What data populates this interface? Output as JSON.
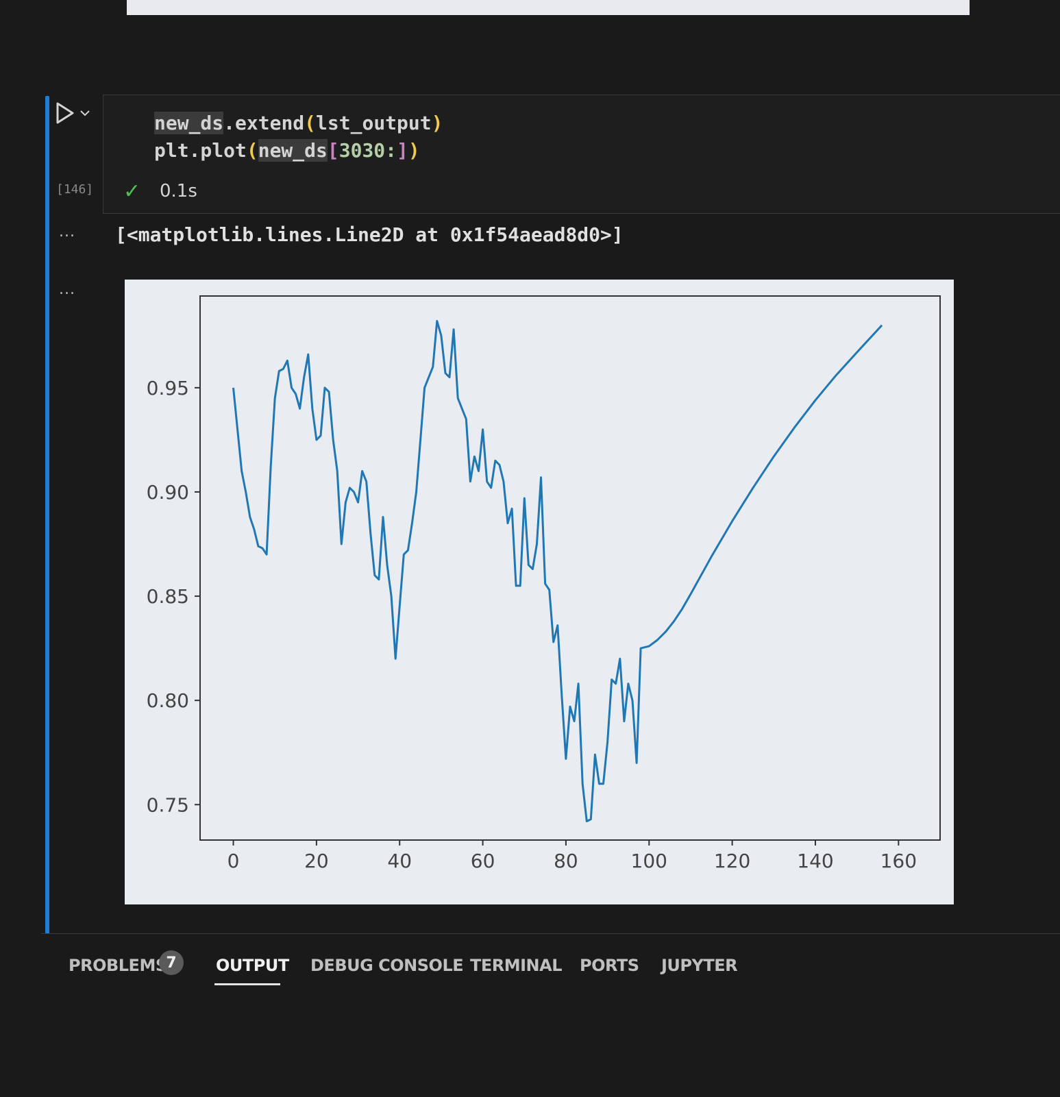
{
  "cell": {
    "code_lines": [
      {
        "parts": [
          "new_ds",
          ".extend",
          "(",
          "lst_output",
          ")"
        ]
      },
      {
        "parts": [
          "plt.plot",
          "(",
          "new_ds",
          "[",
          "3030:",
          "]",
          ")"
        ]
      }
    ],
    "execution_count": "[146]",
    "status": "✓",
    "exec_time": "0.1s"
  },
  "output": {
    "more_label": "...",
    "repr_text": "[<matplotlib.lines.Line2D at 0x1f54aead8d0>]"
  },
  "panel": {
    "tabs": [
      {
        "label": "PROBLEMS",
        "badge": "7"
      },
      {
        "label": "OUTPUT",
        "active": true
      },
      {
        "label": "DEBUG CONSOLE"
      },
      {
        "label": "TERMINAL"
      },
      {
        "label": "PORTS"
      },
      {
        "label": "JUPYTER"
      }
    ]
  },
  "colors": {
    "line": "#1f77b4",
    "accent": "#1f7fd6"
  },
  "chart_data": {
    "type": "line",
    "x_ticks": [
      0,
      20,
      40,
      60,
      80,
      100,
      120,
      140,
      160
    ],
    "y_ticks": [
      0.75,
      0.8,
      0.85,
      0.9,
      0.95
    ],
    "x_tick_labels": [
      "0",
      "20",
      "40",
      "60",
      "80",
      "100",
      "120",
      "140",
      "160"
    ],
    "y_tick_labels": [
      "0.75",
      "0.80",
      "0.85",
      "0.90",
      "0.95"
    ],
    "xlim": [
      -8,
      170
    ],
    "ylim": [
      0.733,
      0.994
    ],
    "grid": false,
    "series": [
      {
        "points": [
          [
            0,
            0.95
          ],
          [
            1,
            0.93
          ],
          [
            2,
            0.91
          ],
          [
            3,
            0.9
          ],
          [
            4,
            0.888
          ],
          [
            5,
            0.882
          ],
          [
            6,
            0.874
          ],
          [
            7,
            0.873
          ],
          [
            8,
            0.87
          ],
          [
            9,
            0.912
          ],
          [
            10,
            0.945
          ],
          [
            11,
            0.958
          ],
          [
            12,
            0.959
          ],
          [
            13,
            0.963
          ],
          [
            14,
            0.95
          ],
          [
            15,
            0.947
          ],
          [
            16,
            0.94
          ],
          [
            17,
            0.955
          ],
          [
            18,
            0.966
          ],
          [
            19,
            0.94
          ],
          [
            20,
            0.925
          ],
          [
            21,
            0.927
          ],
          [
            22,
            0.95
          ],
          [
            23,
            0.948
          ],
          [
            24,
            0.925
          ],
          [
            25,
            0.91
          ],
          [
            26,
            0.875
          ],
          [
            27,
            0.895
          ],
          [
            28,
            0.902
          ],
          [
            29,
            0.9
          ],
          [
            30,
            0.895
          ],
          [
            31,
            0.91
          ],
          [
            32,
            0.905
          ],
          [
            33,
            0.88
          ],
          [
            34,
            0.86
          ],
          [
            35,
            0.858
          ],
          [
            36,
            0.888
          ],
          [
            37,
            0.865
          ],
          [
            38,
            0.85
          ],
          [
            39,
            0.82
          ],
          [
            40,
            0.845
          ],
          [
            41,
            0.87
          ],
          [
            42,
            0.872
          ],
          [
            43,
            0.885
          ],
          [
            44,
            0.9
          ],
          [
            45,
            0.925
          ],
          [
            46,
            0.95
          ],
          [
            47,
            0.955
          ],
          [
            48,
            0.96
          ],
          [
            49,
            0.982
          ],
          [
            50,
            0.975
          ],
          [
            51,
            0.957
          ],
          [
            52,
            0.955
          ],
          [
            53,
            0.978
          ],
          [
            54,
            0.945
          ],
          [
            55,
            0.94
          ],
          [
            56,
            0.935
          ],
          [
            57,
            0.905
          ],
          [
            58,
            0.917
          ],
          [
            59,
            0.91
          ],
          [
            60,
            0.93
          ],
          [
            61,
            0.905
          ],
          [
            62,
            0.902
          ],
          [
            63,
            0.915
          ],
          [
            64,
            0.913
          ],
          [
            65,
            0.905
          ],
          [
            66,
            0.885
          ],
          [
            67,
            0.892
          ],
          [
            68,
            0.855
          ],
          [
            69,
            0.855
          ],
          [
            70,
            0.897
          ],
          [
            71,
            0.865
          ],
          [
            72,
            0.863
          ],
          [
            73,
            0.875
          ],
          [
            74,
            0.907
          ],
          [
            75,
            0.856
          ],
          [
            76,
            0.853
          ],
          [
            77,
            0.828
          ],
          [
            78,
            0.836
          ],
          [
            79,
            0.802
          ],
          [
            80,
            0.772
          ],
          [
            81,
            0.797
          ],
          [
            82,
            0.79
          ],
          [
            83,
            0.808
          ],
          [
            84,
            0.76
          ],
          [
            85,
            0.742
          ],
          [
            86,
            0.743
          ],
          [
            87,
            0.774
          ],
          [
            88,
            0.76
          ],
          [
            89,
            0.76
          ],
          [
            90,
            0.78
          ],
          [
            91,
            0.81
          ],
          [
            92,
            0.808
          ],
          [
            93,
            0.82
          ],
          [
            94,
            0.79
          ],
          [
            95,
            0.808
          ],
          [
            96,
            0.8
          ],
          [
            97,
            0.77
          ],
          [
            98,
            0.825
          ],
          [
            100,
            0.826
          ],
          [
            102,
            0.829
          ],
          [
            104,
            0.833
          ],
          [
            106,
            0.838
          ],
          [
            108,
            0.844
          ],
          [
            110,
            0.851
          ],
          [
            115,
            0.869
          ],
          [
            120,
            0.886
          ],
          [
            125,
            0.902
          ],
          [
            130,
            0.917
          ],
          [
            135,
            0.931
          ],
          [
            140,
            0.944
          ],
          [
            145,
            0.956
          ],
          [
            150,
            0.967
          ],
          [
            156,
            0.98
          ]
        ]
      }
    ]
  }
}
